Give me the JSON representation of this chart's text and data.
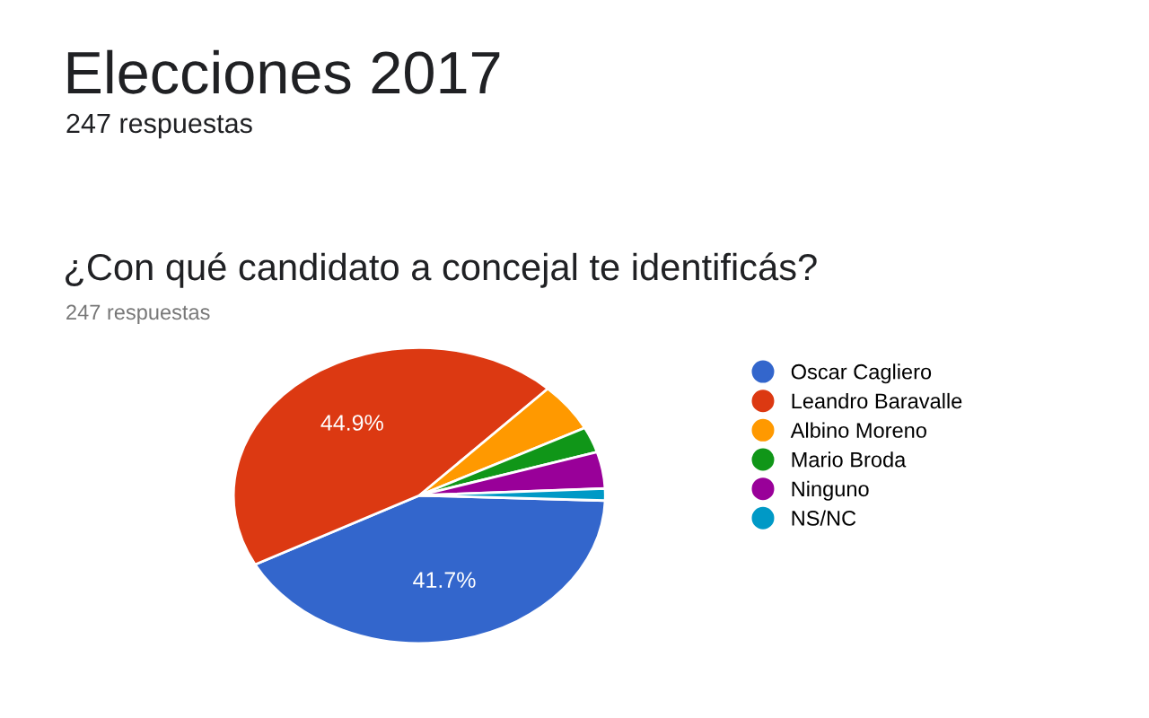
{
  "chart_data": {
    "type": "pie",
    "title": "Elecciones 2017",
    "subtitle": "247 respuestas",
    "annotations": [
      "¿Con qué candidato a concejal te identificás?",
      "247 respuestas"
    ],
    "categories": [
      "Oscar Cagliero",
      "Leandro Baravalle",
      "Albino Moreno",
      "Mario Broda",
      "Ninguno",
      "NS/NC"
    ],
    "values": [
      41.7,
      44.9,
      5.3,
      2.8,
      4.0,
      1.3
    ],
    "value_labels": [
      "41.7%",
      "44.9%",
      null,
      null,
      null,
      null
    ],
    "colors": [
      "#3366cc",
      "#dc3912",
      "#ff9900",
      "#109618",
      "#990099",
      "#0099c6"
    ],
    "legend": "right"
  }
}
